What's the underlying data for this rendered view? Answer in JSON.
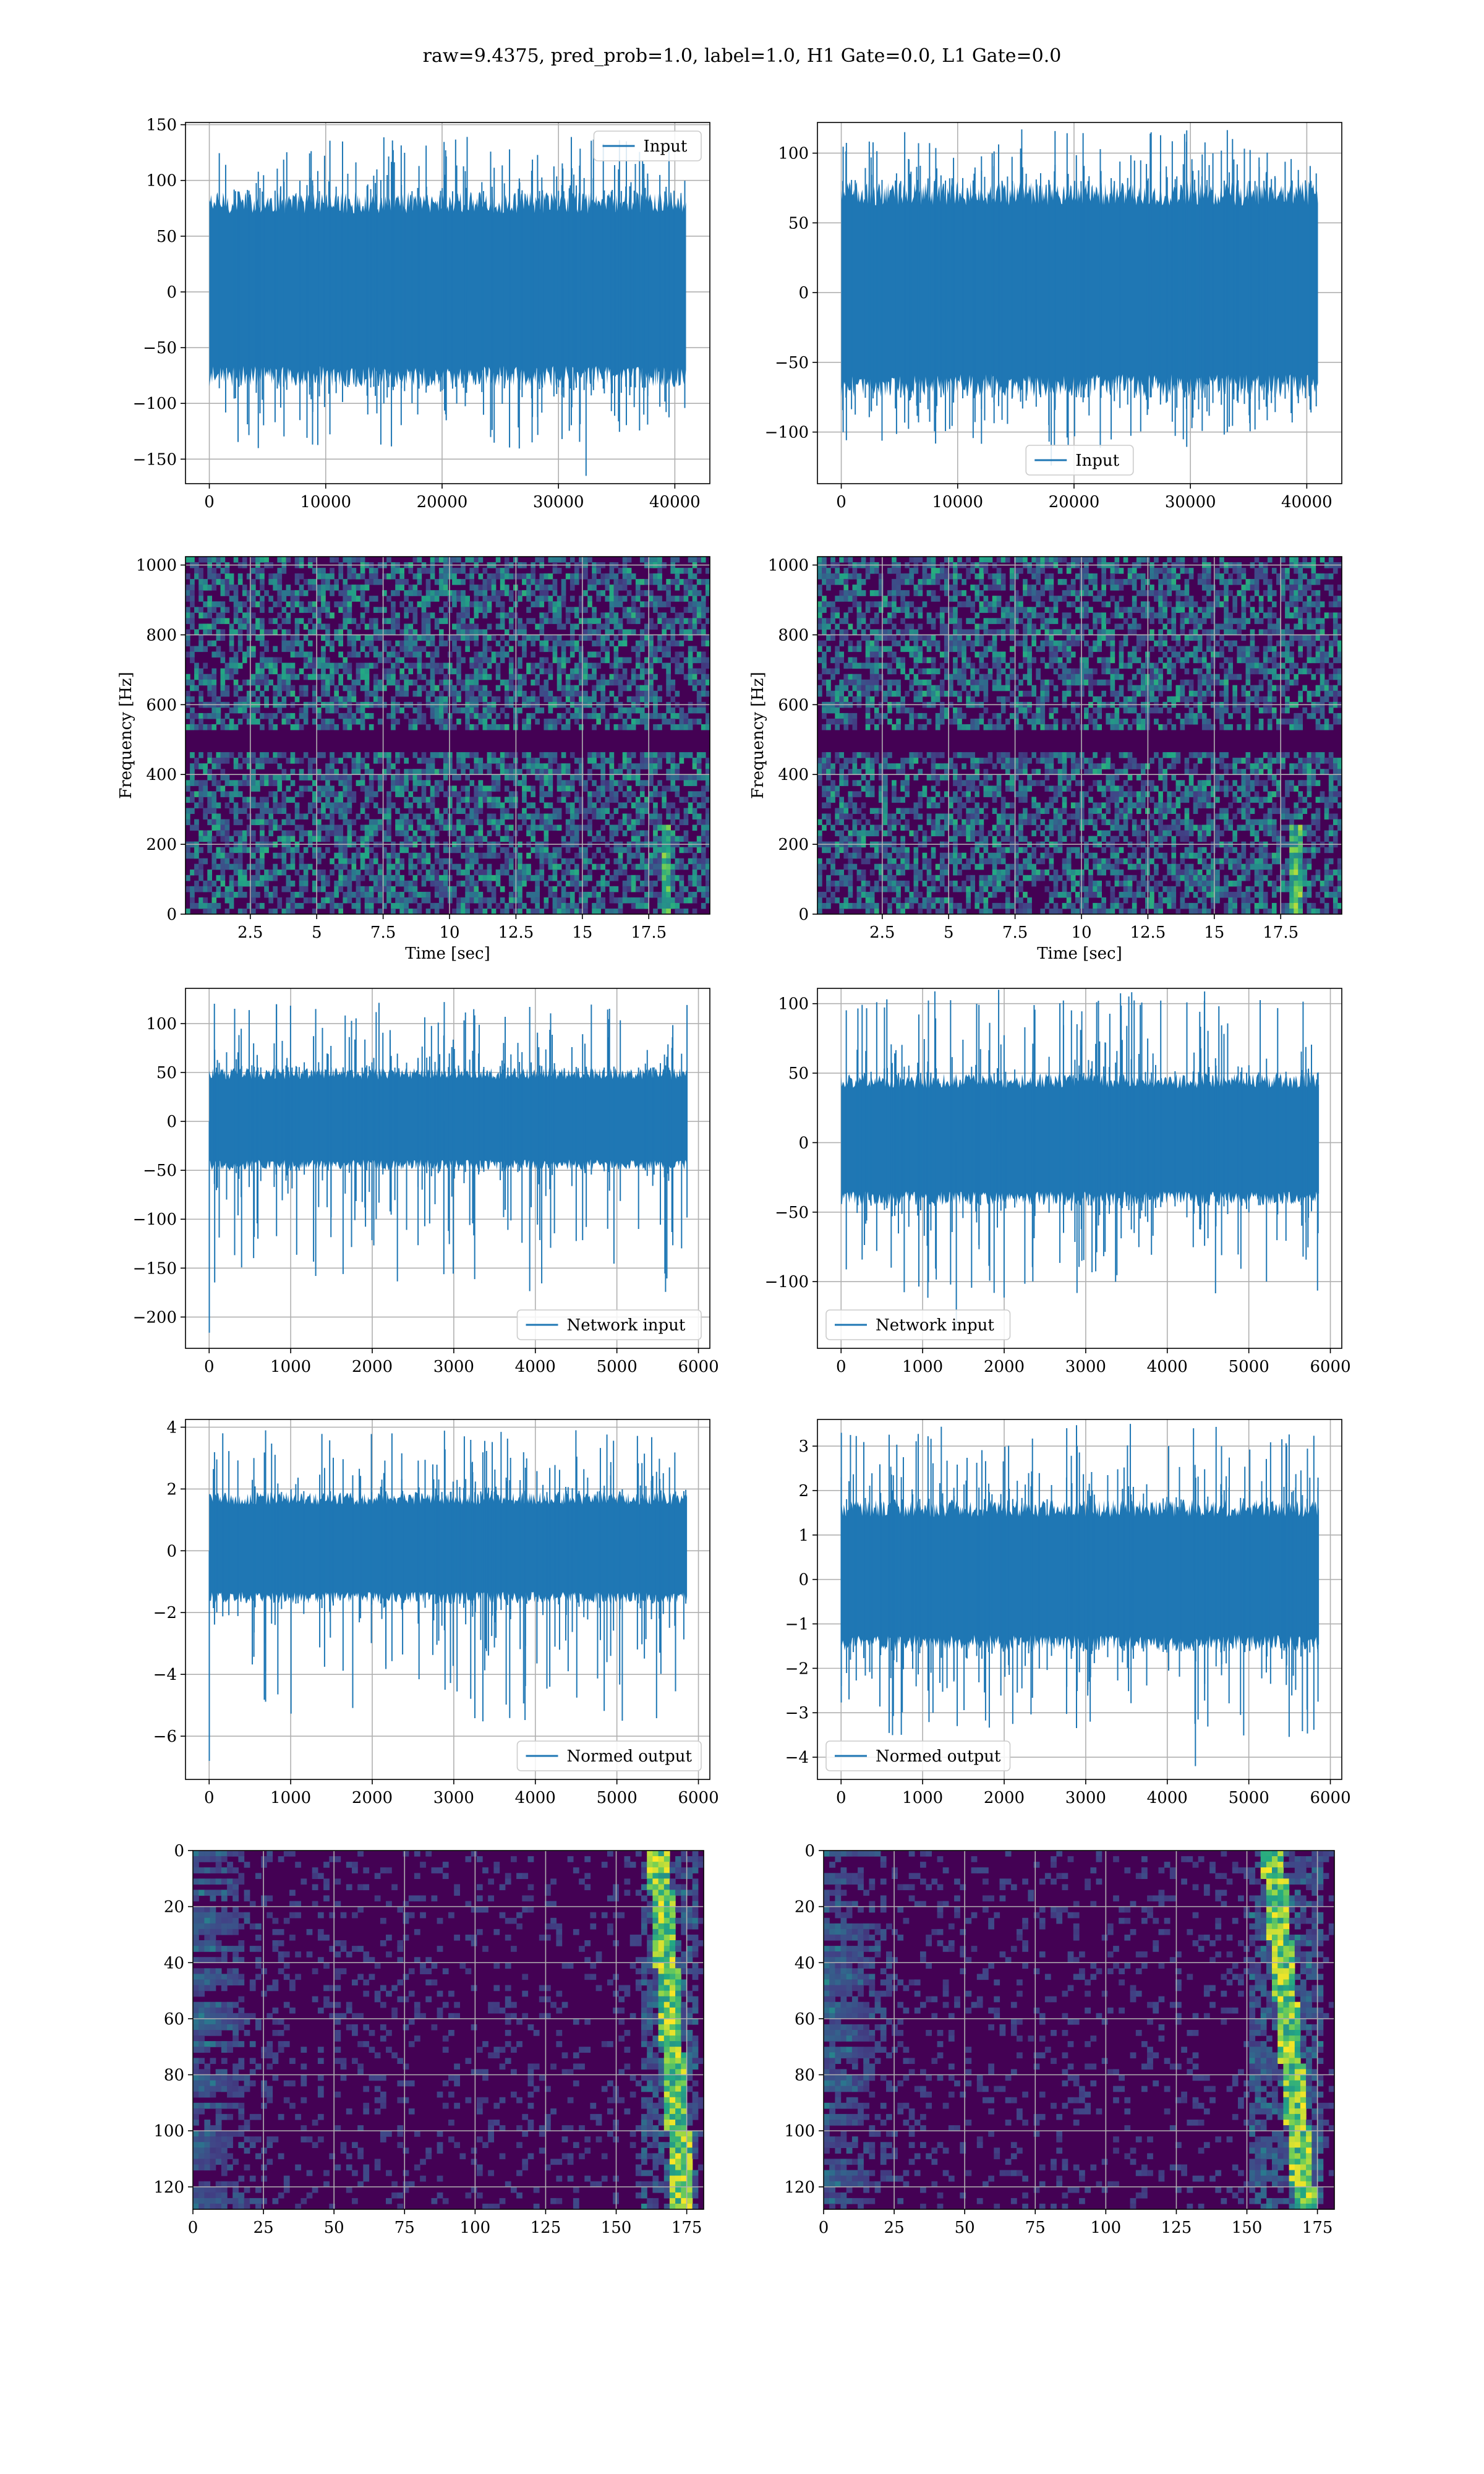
{
  "figure": {
    "suptitle": "raw=9.4375, pred_prob=1.0, label=1.0, H1 Gate=0.0, L1 Gate=0.0"
  },
  "colors": {
    "line": "#1f77b4",
    "grid": "#b0b0b0",
    "viridis_low": "#440154",
    "viridis_mid": "#21918c",
    "viridis_high": "#fde725"
  },
  "chart_data": [
    {
      "id": "h1_input",
      "type": "line",
      "xticks": [
        0,
        10000,
        20000,
        30000,
        40000
      ],
      "xlim": [
        -2048,
        43008
      ],
      "yticks": [
        -150,
        -100,
        -50,
        0,
        50,
        100,
        150
      ],
      "ylim": [
        -172,
        152
      ],
      "xlabel": "",
      "ylabel": "",
      "series": [
        {
          "name": "Input",
          "x_range": [
            0,
            40960
          ],
          "typical_envelope": [
            -85,
            90
          ],
          "peak_max": 139,
          "peak_min": -165
        }
      ],
      "legend": "upper right",
      "grid": true
    },
    {
      "id": "l1_input",
      "type": "line",
      "xticks": [
        0,
        10000,
        20000,
        30000,
        40000
      ],
      "xlim": [
        -2048,
        43008
      ],
      "yticks": [
        -100,
        -50,
        0,
        50,
        100
      ],
      "ylim": [
        -137,
        122
      ],
      "xlabel": "",
      "ylabel": "",
      "series": [
        {
          "name": "Input",
          "x_range": [
            0,
            40960
          ],
          "typical_envelope": [
            -75,
            80
          ],
          "peak_max": 117,
          "peak_min": -124
        }
      ],
      "legend": "lower center",
      "grid": true
    },
    {
      "id": "h1_spectrogram",
      "type": "heatmap",
      "xticks": [
        2.5,
        5.0,
        7.5,
        10.0,
        12.5,
        15.0,
        17.5
      ],
      "xlim": [
        0.06,
        19.8
      ],
      "yticks": [
        0,
        200,
        400,
        600,
        800,
        1000
      ],
      "ylim": [
        0,
        1024
      ],
      "xlabel": "Time [sec]",
      "ylabel": "Frequency [Hz]",
      "colormap": "viridis",
      "grid": true,
      "features": {
        "dark_band_hz": [
          480,
          510
        ],
        "chirp_time_sec": [
          18.0,
          18.4
        ]
      }
    },
    {
      "id": "l1_spectrogram",
      "type": "heatmap",
      "xticks": [
        2.5,
        5.0,
        7.5,
        10.0,
        12.5,
        15.0,
        17.5
      ],
      "xlim": [
        0.06,
        19.8
      ],
      "yticks": [
        0,
        200,
        400,
        600,
        800,
        1000
      ],
      "ylim": [
        0,
        1024
      ],
      "xlabel": "Time [sec]",
      "ylabel": "Frequency [Hz]",
      "colormap": "viridis",
      "grid": true,
      "features": {
        "dark_band_hz": [
          480,
          510
        ],
        "chirp_time_sec": [
          17.9,
          18.3
        ]
      }
    },
    {
      "id": "h1_network_input",
      "type": "line",
      "xticks": [
        0,
        1000,
        2000,
        3000,
        4000,
        5000,
        6000
      ],
      "xlim": [
        -290,
        6140
      ],
      "yticks": [
        -200,
        -150,
        -100,
        -50,
        0,
        50,
        100
      ],
      "ylim": [
        -232,
        136
      ],
      "xlabel": "",
      "ylabel": "",
      "series": [
        {
          "name": "Network input",
          "x_range": [
            0,
            5860
          ],
          "typical_envelope": [
            -50,
            55
          ],
          "peak_max": 122,
          "peak_min": -216
        }
      ],
      "legend": "lower right",
      "grid": true
    },
    {
      "id": "l1_network_input",
      "type": "line",
      "xticks": [
        0,
        1000,
        2000,
        3000,
        4000,
        5000,
        6000
      ],
      "xlim": [
        -290,
        6140
      ],
      "yticks": [
        -100,
        -50,
        0,
        50,
        100
      ],
      "ylim": [
        -148,
        111
      ],
      "xlabel": "",
      "ylabel": "",
      "series": [
        {
          "name": "Network input",
          "x_range": [
            0,
            5860
          ],
          "typical_envelope": [
            -45,
            50
          ],
          "peak_max": 110,
          "peak_min": -134
        }
      ],
      "legend": "lower left",
      "grid": true
    },
    {
      "id": "h1_normed_output",
      "type": "line",
      "xticks": [
        0,
        1000,
        2000,
        3000,
        4000,
        5000,
        6000
      ],
      "xlim": [
        -290,
        6140
      ],
      "yticks": [
        -6,
        -4,
        -2,
        0,
        2,
        4
      ],
      "ylim": [
        -7.4,
        4.25
      ],
      "xlabel": "",
      "ylabel": "",
      "series": [
        {
          "name": "Normed output",
          "x_range": [
            0,
            5860
          ],
          "typical_envelope": [
            -1.7,
            1.9
          ],
          "peak_max": 3.9,
          "peak_min": -6.8
        }
      ],
      "legend": "lower right",
      "grid": true
    },
    {
      "id": "l1_normed_output",
      "type": "line",
      "xticks": [
        0,
        1000,
        2000,
        3000,
        4000,
        5000,
        6000
      ],
      "xlim": [
        -290,
        6140
      ],
      "yticks": [
        -4,
        -3,
        -2,
        -1,
        0,
        1,
        2,
        3
      ],
      "ylim": [
        -4.5,
        3.6
      ],
      "xlabel": "",
      "ylabel": "",
      "series": [
        {
          "name": "Normed output",
          "x_range": [
            0,
            5860
          ],
          "typical_envelope": [
            -1.6,
            1.8
          ],
          "peak_max": 3.5,
          "peak_min": -4.2
        }
      ],
      "legend": "lower left",
      "grid": true
    },
    {
      "id": "h1_feature_map",
      "type": "heatmap",
      "xticks": [
        0,
        25,
        50,
        75,
        100,
        125,
        150,
        175
      ],
      "xlim": [
        0,
        181
      ],
      "yticks": [
        0,
        20,
        40,
        60,
        80,
        100,
        120
      ],
      "ylim": [
        0,
        128
      ],
      "y_inverted": true,
      "xlabel": "",
      "ylabel": "",
      "colormap": "viridis",
      "grid": true,
      "features": {
        "bright_column_range": [
          158,
          178
        ]
      }
    },
    {
      "id": "l1_feature_map",
      "type": "heatmap",
      "xticks": [
        0,
        25,
        50,
        75,
        100,
        125,
        150,
        175
      ],
      "xlim": [
        0,
        181
      ],
      "yticks": [
        0,
        20,
        40,
        60,
        80,
        100,
        120
      ],
      "ylim": [
        0,
        128
      ],
      "y_inverted": true,
      "xlabel": "",
      "ylabel": "",
      "colormap": "viridis",
      "grid": true,
      "features": {
        "bright_column_range": [
          150,
          176
        ]
      }
    }
  ]
}
